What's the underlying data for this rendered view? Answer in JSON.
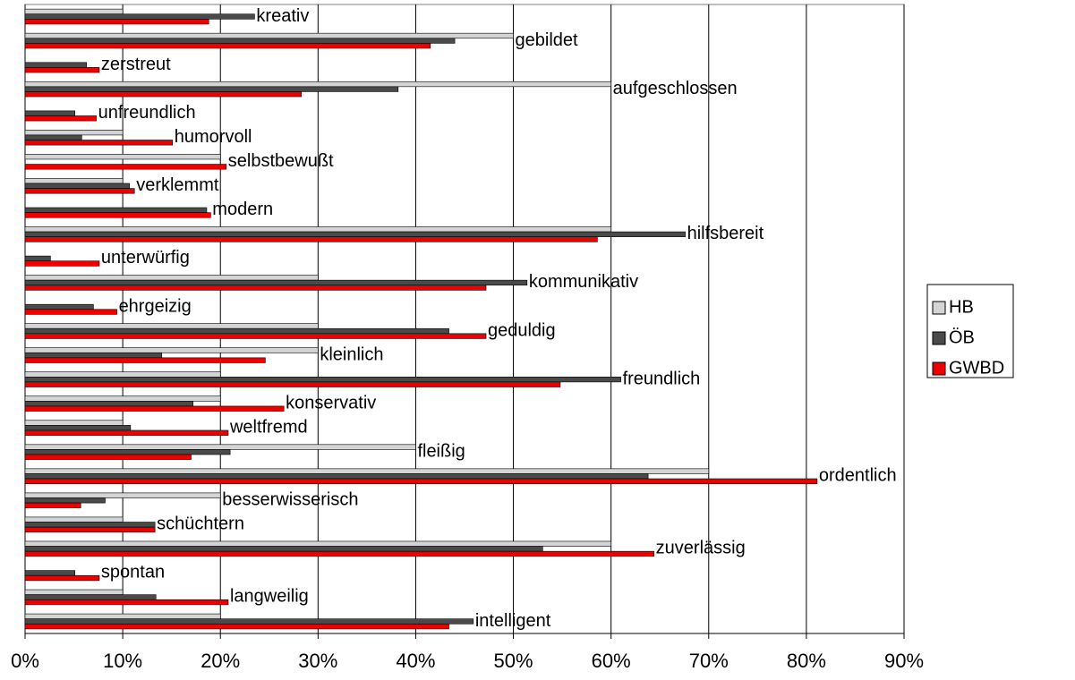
{
  "chart_data": {
    "type": "bar",
    "orientation": "horizontal",
    "categories": [
      "kreativ",
      "gebildet",
      "zerstreut",
      "aufgeschlossen",
      "unfreundlich",
      "humorvoll",
      "selbstbewußt",
      "verklemmt",
      "modern",
      "hilfsbereit",
      "unterwürfig",
      "kommunikativ",
      "ehrgeizig",
      "geduldig",
      "kleinlich",
      "freundlich",
      "konservativ",
      "weltfremd",
      "fleißig",
      "ordentlich",
      "besserwisserisch",
      "schüchtern",
      "zuverlässig",
      "spontan",
      "langweilig",
      "intelligent"
    ],
    "series": [
      {
        "name": "HB",
        "color": "#d4d4d4",
        "values": [
          10,
          50,
          0,
          60,
          0,
          10,
          20,
          10,
          0,
          60,
          0,
          30,
          0,
          30,
          30,
          20,
          20,
          10,
          40,
          70,
          20,
          10,
          60,
          0,
          10,
          20
        ]
      },
      {
        "name": "ÖB",
        "color": "#4a4a4a",
        "values": [
          23.5,
          44,
          6.3,
          38.2,
          5.1,
          5.8,
          0,
          10.7,
          18.6,
          67.6,
          2.6,
          51.4,
          7,
          43.4,
          14,
          61,
          17.2,
          10.8,
          21,
          63.8,
          8.2,
          13.3,
          53,
          5.1,
          13.4,
          45.9
        ]
      },
      {
        "name": "GWBD",
        "color": "#ee0000",
        "values": [
          18.8,
          41.5,
          7.6,
          28.3,
          7.3,
          15.1,
          20.6,
          11.2,
          19,
          58.6,
          7.6,
          47.2,
          9.4,
          47.2,
          24.6,
          54.8,
          26.5,
          20.8,
          17,
          81.1,
          5.7,
          13.3,
          64.4,
          7.6,
          20.8,
          43.4
        ]
      }
    ],
    "xlim": [
      0,
      90
    ],
    "xticks": [
      {
        "value": 0,
        "label": "0%"
      },
      {
        "value": 10,
        "label": "10%"
      },
      {
        "value": 20,
        "label": "20%"
      },
      {
        "value": 30,
        "label": "30%"
      },
      {
        "value": 40,
        "label": "40%"
      },
      {
        "value": 50,
        "label": "50%"
      },
      {
        "value": 60,
        "label": "60%"
      },
      {
        "value": 70,
        "label": "70%"
      },
      {
        "value": 80,
        "label": "80%"
      },
      {
        "value": 90,
        "label": "90%"
      }
    ],
    "grid": true,
    "legend": "right"
  }
}
